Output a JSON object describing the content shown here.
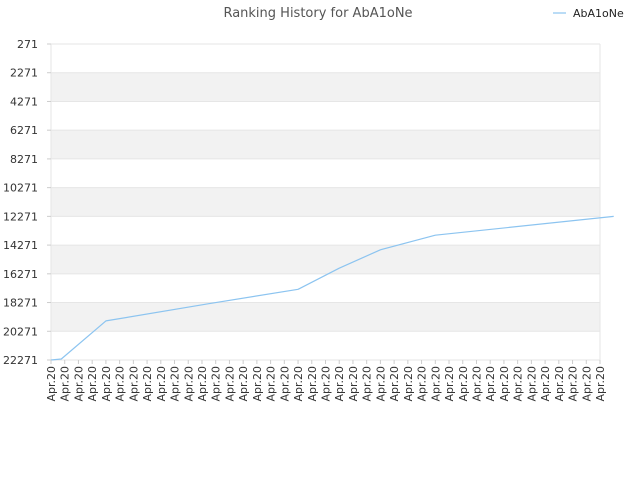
{
  "chart_data": {
    "type": "line",
    "title": "Ranking History for AbA1oNe",
    "xlabel": "",
    "ylabel": "",
    "y_inverted": true,
    "ylim": [
      271,
      22271
    ],
    "yticks": [
      271,
      2271,
      4271,
      6271,
      8271,
      10271,
      12271,
      14271,
      16271,
      18271,
      20271,
      22271
    ],
    "x_tick_labels": [
      "Apr.20",
      "Apr.20",
      "Apr.20",
      "Apr.20",
      "Apr.20",
      "Apr.20",
      "Apr.20",
      "Apr.20",
      "Apr.20",
      "Apr.20",
      "Apr.20",
      "Apr.20",
      "Apr.20",
      "Apr.20",
      "Apr.20",
      "Apr.20",
      "Apr.20",
      "Apr.20",
      "Apr.20",
      "Apr.20",
      "Apr.20",
      "Apr.20",
      "Apr.20",
      "Apr.20",
      "Apr.20",
      "Apr.20",
      "Apr.20",
      "Apr.20",
      "Apr.20",
      "Apr.20",
      "Apr.20",
      "Apr.20",
      "Apr.20",
      "Apr.20",
      "Apr.20",
      "Apr.20",
      "Apr.20",
      "Apr.20",
      "Apr.20",
      "Apr.20",
      "Apr.20"
    ],
    "legend": {
      "position": "top-right"
    },
    "grid": true,
    "grid_band_color": "#f2f2f2",
    "grid_line_color": "#e6e6e6",
    "series": [
      {
        "name": "AbA1oNe",
        "color": "#8cc4f0",
        "x": [
          0,
          0.75,
          4,
          11.5,
          18,
          21,
          24,
          28,
          41
        ],
        "values": [
          22271,
          22200,
          19550,
          18350,
          17350,
          15880,
          14600,
          13580,
          12271
        ]
      }
    ]
  }
}
